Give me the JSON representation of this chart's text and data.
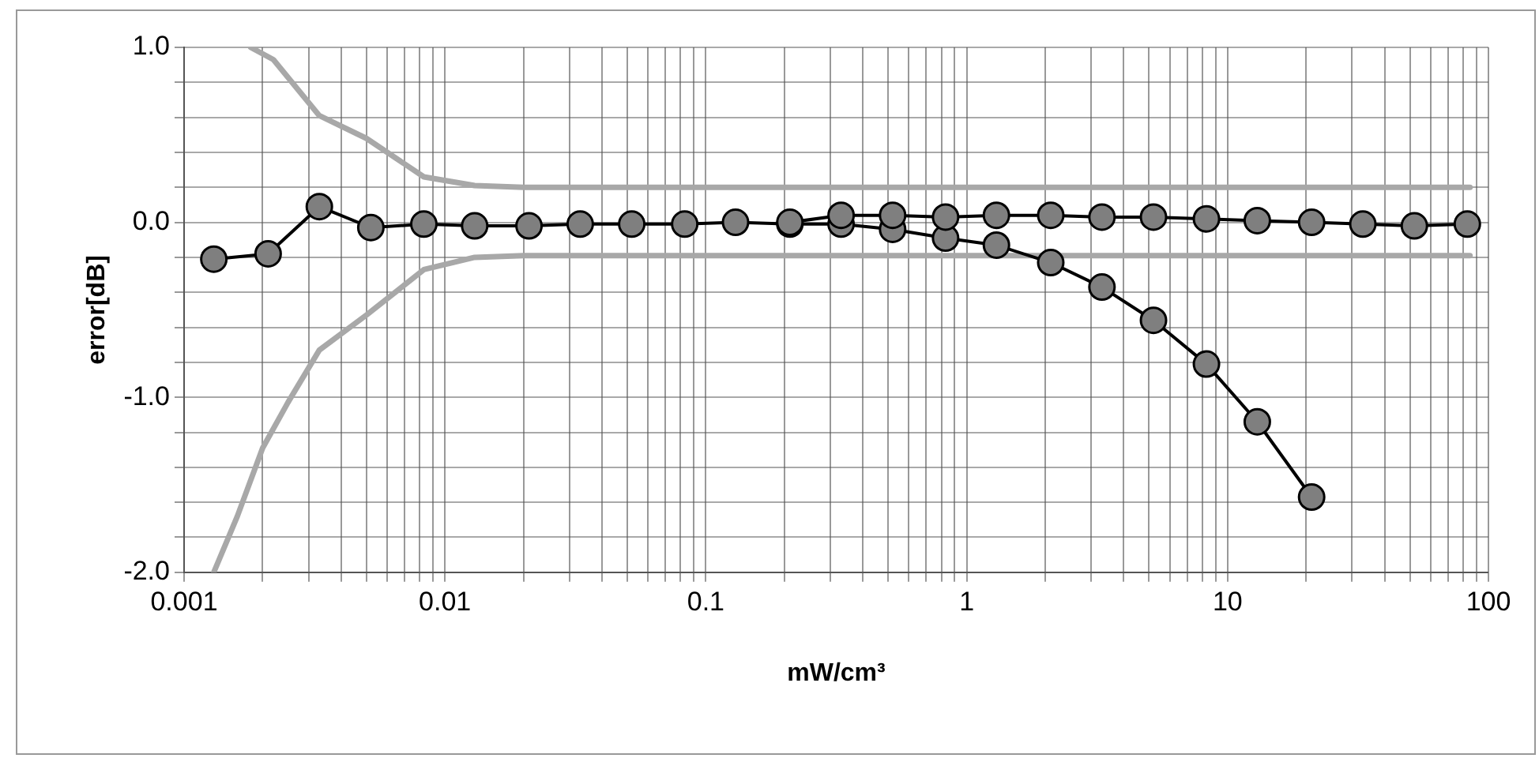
{
  "chart_data": {
    "type": "line",
    "xlabel": "mW/cm³",
    "ylabel": "error[dB]",
    "log": "x",
    "grid": true,
    "legend": false,
    "marker": "circle",
    "line_style": "solid",
    "xlim": [
      0.001,
      100
    ],
    "ylim": [
      -2,
      1
    ],
    "xticks": [
      0.001,
      {
        "value": 0.002,
        "label": null
      },
      {
        "value": 0.003,
        "label": null
      },
      {
        "value": 0.004,
        "label": null
      },
      {
        "value": 0.005,
        "label": null
      },
      {
        "value": 0.006,
        "label": null
      },
      {
        "value": 0.007,
        "label": null
      },
      {
        "value": 0.008,
        "label": null
      },
      {
        "value": 0.009,
        "label": null
      },
      0.01,
      {
        "value": 0.02,
        "label": null
      },
      {
        "value": 0.03,
        "label": null
      },
      {
        "value": 0.04,
        "label": null
      },
      {
        "value": 0.05,
        "label": null
      },
      {
        "value": 0.06,
        "label": null
      },
      {
        "value": 0.07,
        "label": null
      },
      {
        "value": 0.08,
        "label": null
      },
      {
        "value": 0.09,
        "label": null
      },
      0.1,
      {
        "value": 0.2,
        "label": null
      },
      {
        "value": 0.3,
        "label": null
      },
      {
        "value": 0.4,
        "label": null
      },
      {
        "value": 0.5,
        "label": null
      },
      {
        "value": 0.6,
        "label": null
      },
      {
        "value": 0.7,
        "label": null
      },
      {
        "value": 0.8,
        "label": null
      },
      {
        "value": 0.9,
        "label": null
      },
      1,
      {
        "value": 2,
        "label": null
      },
      {
        "value": 3,
        "label": null
      },
      {
        "value": 4,
        "label": null
      },
      {
        "value": 5,
        "label": null
      },
      {
        "value": 6,
        "label": null
      },
      {
        "value": 7,
        "label": null
      },
      {
        "value": 8,
        "label": null
      },
      {
        "value": 9,
        "label": null
      },
      10,
      {
        "value": 20,
        "label": null
      },
      {
        "value": 30,
        "label": null
      },
      {
        "value": 40,
        "label": null
      },
      {
        "value": 50,
        "label": null
      },
      {
        "value": 60,
        "label": null
      },
      {
        "value": 70,
        "label": null
      },
      {
        "value": 80,
        "label": null
      },
      {
        "value": 90,
        "label": null
      },
      100
    ],
    "yticks": [
      {
        "value": -2,
        "label": "-2.0"
      },
      {
        "value": -1.8,
        "label": null
      },
      {
        "value": -1.6,
        "label": null
      },
      {
        "value": -1.4,
        "label": null
      },
      {
        "value": -1.2,
        "label": null
      },
      {
        "value": -1,
        "label": "-1.0"
      },
      {
        "value": -0.8,
        "label": null
      },
      {
        "value": -0.6,
        "label": null
      },
      {
        "value": -0.4,
        "label": null
      },
      {
        "value": -0.2,
        "label": null
      },
      {
        "value": 0,
        "label": "0.0"
      },
      {
        "value": 0.2,
        "label": null
      },
      {
        "value": 0.4,
        "label": null
      },
      {
        "value": 0.6,
        "label": null
      },
      {
        "value": 0.8,
        "label": null
      },
      {
        "value": 1,
        "label": "1.0"
      }
    ],
    "series": [
      {
        "color": "#a8a8a8",
        "marker": "none",
        "x": [
          0.0018,
          0.0022,
          0.0033,
          0.005,
          0.0083,
          0.013,
          0.02,
          85
        ],
        "values": [
          1.0,
          0.93,
          0.61,
          0.48,
          0.26,
          0.21,
          0.2,
          0.2
        ]
      },
      {
        "color": "#a8a8a8",
        "marker": "none",
        "x": [
          0.0013,
          0.0016,
          0.002,
          0.0025,
          0.0033,
          0.005,
          0.0083,
          0.013,
          0.02,
          85
        ],
        "values": [
          -2.0,
          -1.68,
          -1.29,
          -1.03,
          -0.73,
          -0.53,
          -0.27,
          -0.2,
          -0.19,
          -0.19
        ]
      },
      {
        "color": "#000000",
        "x": [
          0.0013,
          0.0021,
          0.0033,
          0.0052,
          0.0083,
          0.013,
          0.021,
          0.033,
          0.052,
          0.083,
          0.13,
          0.21,
          0.33,
          0.52,
          0.83,
          1.3,
          2.1,
          3.3,
          5.2,
          8.3,
          13,
          21
        ],
        "values": [
          -0.21,
          -0.18,
          0.09,
          -0.03,
          -0.01,
          -0.02,
          -0.02,
          -0.01,
          -0.01,
          -0.01,
          0.0,
          -0.01,
          -0.01,
          -0.04,
          -0.09,
          -0.13,
          -0.23,
          -0.37,
          -0.56,
          -0.81,
          -1.14,
          -1.57
        ]
      },
      {
        "color": "#000000",
        "x": [
          0.21,
          0.33,
          0.52,
          0.83,
          1.3,
          2.1,
          3.3,
          5.2,
          8.3,
          13,
          21,
          33,
          52,
          83
        ],
        "values": [
          0.0,
          0.04,
          0.04,
          0.03,
          0.04,
          0.04,
          0.03,
          0.03,
          0.02,
          0.01,
          0.0,
          -0.01,
          -0.02,
          -0.01
        ]
      }
    ]
  }
}
